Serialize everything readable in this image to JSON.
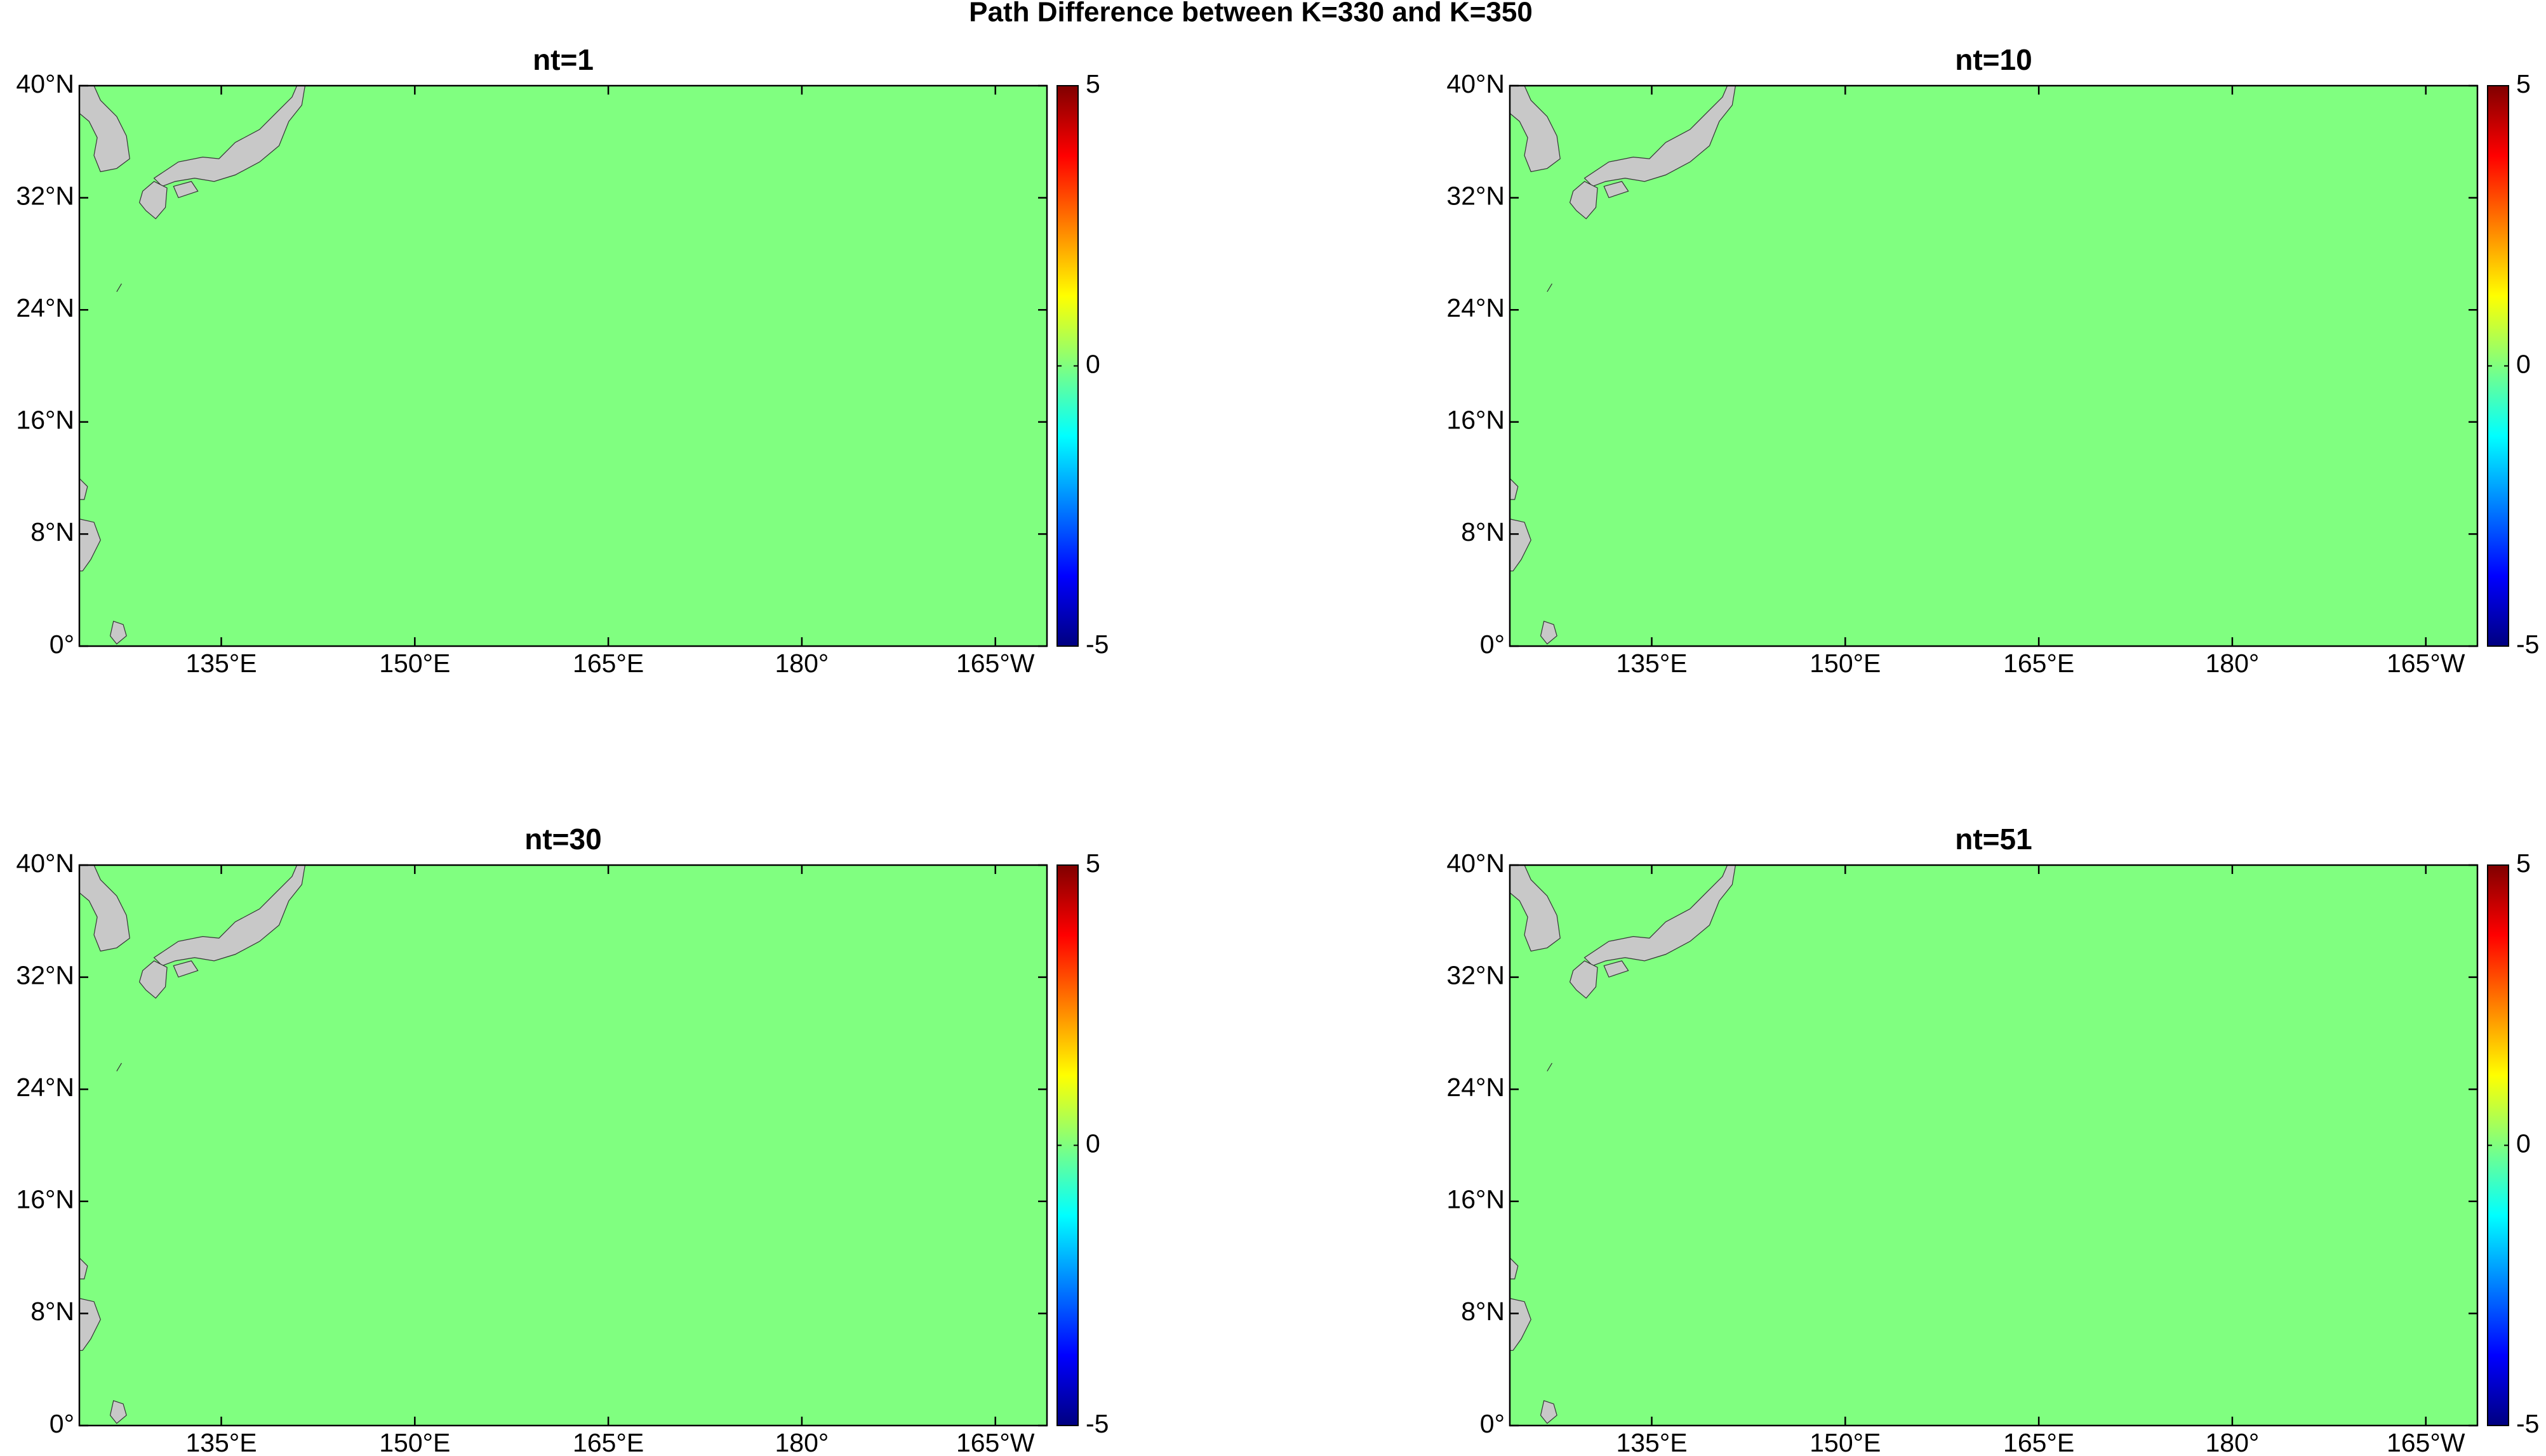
{
  "title": "Path Difference between K=330 and K=350",
  "panels": [
    {
      "title": "nt=1",
      "value": 0
    },
    {
      "title": "nt=10",
      "value": 0
    },
    {
      "title": "nt=30",
      "value": 0
    },
    {
      "title": "nt=51",
      "value": 0
    }
  ],
  "lonlim": [
    124,
    199
  ],
  "latlim": [
    0,
    40
  ],
  "lon_ticks": [
    {
      "value": 135,
      "label": "135°E"
    },
    {
      "value": 150,
      "label": "150°E"
    },
    {
      "value": 165,
      "label": "165°E"
    },
    {
      "value": 180,
      "label": "180°"
    },
    {
      "value": 195,
      "label": "165°W"
    }
  ],
  "lat_ticks": [
    {
      "value": 0,
      "label": "0°"
    },
    {
      "value": 8,
      "label": "8°N"
    },
    {
      "value": 16,
      "label": "16°N"
    },
    {
      "value": 24,
      "label": "24°N"
    },
    {
      "value": 32,
      "label": "32°N"
    },
    {
      "value": 40,
      "label": "40°N"
    }
  ],
  "colorbar": {
    "colormap": "jet",
    "clim": [
      -5,
      5
    ],
    "ticks": [
      -5,
      0,
      5
    ]
  }
}
